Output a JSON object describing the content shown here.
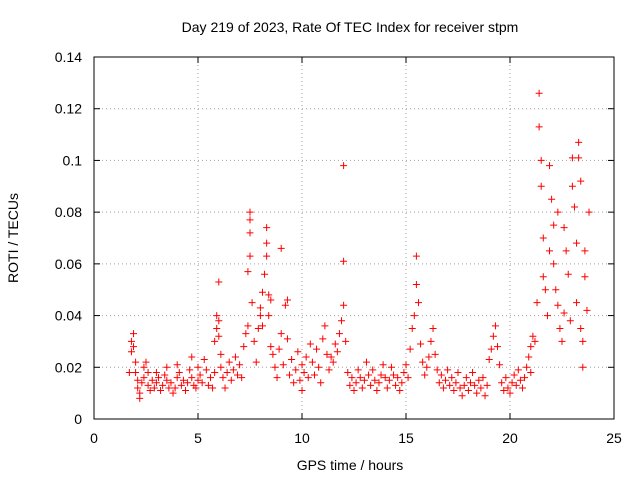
{
  "chart_data": {
    "type": "scatter",
    "title": "Day 219 of 2023, Rate Of TEC Index for receiver stpm",
    "xlabel": "GPS time / hours",
    "ylabel": "ROTI / TECUs",
    "xlim": [
      0,
      25
    ],
    "ylim": [
      0,
      0.14
    ],
    "x_ticks": [
      "0",
      "5",
      "10",
      "15",
      "20",
      "25"
    ],
    "y_ticks": [
      "0",
      "0.02",
      "0.04",
      "0.06",
      "0.08",
      "0.1",
      "0.12",
      "0.14"
    ],
    "grid": true,
    "marker": "+",
    "color": "#ff0000",
    "series": [
      {
        "points": [
          [
            1.7,
            0.018
          ],
          [
            1.8,
            0.026
          ],
          [
            1.8,
            0.03
          ],
          [
            1.9,
            0.033
          ],
          [
            1.9,
            0.028
          ],
          [
            2.0,
            0.022
          ],
          [
            2.0,
            0.018
          ],
          [
            2.1,
            0.012
          ],
          [
            2.1,
            0.015
          ],
          [
            2.2,
            0.01
          ],
          [
            2.2,
            0.008
          ],
          [
            2.3,
            0.014
          ],
          [
            2.4,
            0.016
          ],
          [
            2.4,
            0.02
          ],
          [
            2.5,
            0.022
          ],
          [
            2.6,
            0.018
          ],
          [
            2.6,
            0.013
          ],
          [
            2.7,
            0.011
          ],
          [
            2.8,
            0.015
          ],
          [
            2.9,
            0.012
          ],
          [
            3.0,
            0.014
          ],
          [
            3.0,
            0.018
          ],
          [
            3.1,
            0.016
          ],
          [
            3.2,
            0.011
          ],
          [
            3.3,
            0.013
          ],
          [
            3.4,
            0.017
          ],
          [
            3.5,
            0.02
          ],
          [
            3.5,
            0.015
          ],
          [
            3.6,
            0.012
          ],
          [
            3.7,
            0.014
          ],
          [
            3.8,
            0.01
          ],
          [
            3.9,
            0.012
          ],
          [
            4.0,
            0.016
          ],
          [
            4.0,
            0.021
          ],
          [
            4.1,
            0.018
          ],
          [
            4.2,
            0.013
          ],
          [
            4.3,
            0.015
          ],
          [
            4.4,
            0.011
          ],
          [
            4.5,
            0.014
          ],
          [
            4.6,
            0.019
          ],
          [
            4.7,
            0.024
          ],
          [
            4.7,
            0.016
          ],
          [
            4.8,
            0.013
          ],
          [
            4.9,
            0.012
          ],
          [
            5.0,
            0.015
          ],
          [
            5.0,
            0.02
          ],
          [
            5.1,
            0.017
          ],
          [
            5.2,
            0.014
          ],
          [
            5.3,
            0.023
          ],
          [
            5.4,
            0.019
          ],
          [
            5.5,
            0.013
          ],
          [
            5.6,
            0.016
          ],
          [
            5.7,
            0.012
          ],
          [
            5.8,
            0.018
          ],
          [
            5.8,
            0.03
          ],
          [
            5.9,
            0.035
          ],
          [
            5.9,
            0.04
          ],
          [
            6.0,
            0.038
          ],
          [
            6.0,
            0.032
          ],
          [
            6.0,
            0.053
          ],
          [
            6.1,
            0.025
          ],
          [
            6.1,
            0.02
          ],
          [
            6.2,
            0.016
          ],
          [
            6.3,
            0.012
          ],
          [
            6.4,
            0.018
          ],
          [
            6.5,
            0.022
          ],
          [
            6.6,
            0.015
          ],
          [
            6.7,
            0.019
          ],
          [
            6.8,
            0.024
          ],
          [
            6.9,
            0.017
          ],
          [
            7.0,
            0.021
          ],
          [
            7.1,
            0.016
          ],
          [
            7.2,
            0.028
          ],
          [
            7.3,
            0.033
          ],
          [
            7.4,
            0.036
          ],
          [
            7.4,
            0.057
          ],
          [
            7.5,
            0.063
          ],
          [
            7.5,
            0.072
          ],
          [
            7.5,
            0.08
          ],
          [
            7.5,
            0.077
          ],
          [
            7.6,
            0.045
          ],
          [
            7.7,
            0.03
          ],
          [
            7.8,
            0.022
          ],
          [
            7.9,
            0.035
          ],
          [
            8.0,
            0.04
          ],
          [
            8.0,
            0.043
          ],
          [
            8.1,
            0.049
          ],
          [
            8.1,
            0.036
          ],
          [
            8.2,
            0.056
          ],
          [
            8.3,
            0.063
          ],
          [
            8.3,
            0.068
          ],
          [
            8.3,
            0.074
          ],
          [
            8.4,
            0.048
          ],
          [
            8.4,
            0.04
          ],
          [
            8.5,
            0.028
          ],
          [
            8.5,
            0.046
          ],
          [
            8.6,
            0.025
          ],
          [
            8.7,
            0.02
          ],
          [
            8.8,
            0.016
          ],
          [
            8.9,
            0.027
          ],
          [
            9.0,
            0.066
          ],
          [
            9.0,
            0.033
          ],
          [
            9.1,
            0.021
          ],
          [
            9.2,
            0.044
          ],
          [
            9.3,
            0.046
          ],
          [
            9.3,
            0.031
          ],
          [
            9.4,
            0.017
          ],
          [
            9.5,
            0.023
          ],
          [
            9.6,
            0.014
          ],
          [
            9.7,
            0.019
          ],
          [
            9.8,
            0.026
          ],
          [
            9.9,
            0.015
          ],
          [
            10.0,
            0.011
          ],
          [
            10.0,
            0.021
          ],
          [
            10.1,
            0.018
          ],
          [
            10.2,
            0.024
          ],
          [
            10.3,
            0.016
          ],
          [
            10.4,
            0.029
          ],
          [
            10.5,
            0.022
          ],
          [
            10.6,
            0.017
          ],
          [
            10.7,
            0.027
          ],
          [
            10.8,
            0.02
          ],
          [
            10.9,
            0.014
          ],
          [
            11.0,
            0.031
          ],
          [
            11.1,
            0.036
          ],
          [
            11.2,
            0.025
          ],
          [
            11.3,
            0.019
          ],
          [
            11.4,
            0.024
          ],
          [
            11.5,
            0.022
          ],
          [
            11.6,
            0.029
          ],
          [
            11.7,
            0.026
          ],
          [
            11.8,
            0.033
          ],
          [
            11.9,
            0.038
          ],
          [
            12.0,
            0.044
          ],
          [
            12.0,
            0.061
          ],
          [
            12.0,
            0.098
          ],
          [
            12.1,
            0.03
          ],
          [
            12.2,
            0.018
          ],
          [
            12.3,
            0.013
          ],
          [
            12.4,
            0.016
          ],
          [
            12.5,
            0.011
          ],
          [
            12.6,
            0.014
          ],
          [
            12.7,
            0.019
          ],
          [
            12.8,
            0.016
          ],
          [
            12.9,
            0.012
          ],
          [
            13.0,
            0.015
          ],
          [
            13.1,
            0.022
          ],
          [
            13.2,
            0.017
          ],
          [
            13.3,
            0.013
          ],
          [
            13.4,
            0.019
          ],
          [
            13.5,
            0.015
          ],
          [
            13.6,
            0.011
          ],
          [
            13.7,
            0.014
          ],
          [
            13.8,
            0.017
          ],
          [
            13.9,
            0.021
          ],
          [
            14.0,
            0.016
          ],
          [
            14.1,
            0.012
          ],
          [
            14.2,
            0.015
          ],
          [
            14.3,
            0.02
          ],
          [
            14.4,
            0.017
          ],
          [
            14.5,
            0.013
          ],
          [
            14.6,
            0.016
          ],
          [
            14.7,
            0.011
          ],
          [
            14.8,
            0.014
          ],
          [
            14.9,
            0.018
          ],
          [
            15.0,
            0.021
          ],
          [
            15.1,
            0.016
          ],
          [
            15.2,
            0.027
          ],
          [
            15.3,
            0.035
          ],
          [
            15.4,
            0.04
          ],
          [
            15.5,
            0.052
          ],
          [
            15.5,
            0.063
          ],
          [
            15.6,
            0.045
          ],
          [
            15.7,
            0.029
          ],
          [
            15.8,
            0.022
          ],
          [
            15.9,
            0.017
          ],
          [
            16.0,
            0.02
          ],
          [
            16.1,
            0.024
          ],
          [
            16.2,
            0.03
          ],
          [
            16.3,
            0.035
          ],
          [
            16.4,
            0.025
          ],
          [
            16.5,
            0.019
          ],
          [
            16.6,
            0.014
          ],
          [
            16.7,
            0.017
          ],
          [
            16.8,
            0.012
          ],
          [
            16.9,
            0.015
          ],
          [
            17.0,
            0.019
          ],
          [
            17.1,
            0.013
          ],
          [
            17.2,
            0.016
          ],
          [
            17.3,
            0.011
          ],
          [
            17.4,
            0.014
          ],
          [
            17.5,
            0.018
          ],
          [
            17.6,
            0.012
          ],
          [
            17.7,
            0.009
          ],
          [
            17.8,
            0.013
          ],
          [
            17.9,
            0.016
          ],
          [
            18.0,
            0.011
          ],
          [
            18.1,
            0.014
          ],
          [
            18.2,
            0.018
          ],
          [
            18.3,
            0.013
          ],
          [
            18.4,
            0.01
          ],
          [
            18.5,
            0.015
          ],
          [
            18.6,
            0.012
          ],
          [
            18.7,
            0.016
          ],
          [
            18.8,
            0.009
          ],
          [
            18.9,
            0.013
          ],
          [
            19.0,
            0.023
          ],
          [
            19.1,
            0.027
          ],
          [
            19.2,
            0.032
          ],
          [
            19.3,
            0.036
          ],
          [
            19.4,
            0.028
          ],
          [
            19.5,
            0.021
          ],
          [
            19.6,
            0.014
          ],
          [
            19.7,
            0.011
          ],
          [
            19.8,
            0.016
          ],
          [
            19.9,
            0.012
          ],
          [
            20.0,
            0.01
          ],
          [
            20.1,
            0.014
          ],
          [
            20.2,
            0.017
          ],
          [
            20.3,
            0.013
          ],
          [
            20.4,
            0.019
          ],
          [
            20.5,
            0.015
          ],
          [
            20.6,
            0.012
          ],
          [
            20.7,
            0.016
          ],
          [
            20.8,
            0.02
          ],
          [
            20.9,
            0.024
          ],
          [
            21.0,
            0.018
          ],
          [
            21.0,
            0.028
          ],
          [
            21.1,
            0.032
          ],
          [
            21.2,
            0.03
          ],
          [
            21.3,
            0.045
          ],
          [
            21.4,
            0.126
          ],
          [
            21.4,
            0.113
          ],
          [
            21.5,
            0.1
          ],
          [
            21.5,
            0.09
          ],
          [
            21.6,
            0.07
          ],
          [
            21.6,
            0.055
          ],
          [
            21.7,
            0.05
          ],
          [
            21.8,
            0.04
          ],
          [
            21.9,
            0.065
          ],
          [
            21.9,
            0.098
          ],
          [
            22.0,
            0.085
          ],
          [
            22.1,
            0.06
          ],
          [
            22.1,
            0.075
          ],
          [
            22.2,
            0.05
          ],
          [
            22.3,
            0.044
          ],
          [
            22.3,
            0.08
          ],
          [
            22.4,
            0.035
          ],
          [
            22.5,
            0.03
          ],
          [
            22.6,
            0.041
          ],
          [
            22.6,
            0.074
          ],
          [
            22.7,
            0.065
          ],
          [
            22.8,
            0.056
          ],
          [
            22.9,
            0.038
          ],
          [
            23.0,
            0.101
          ],
          [
            23.0,
            0.09
          ],
          [
            23.1,
            0.082
          ],
          [
            23.2,
            0.068
          ],
          [
            23.2,
            0.045
          ],
          [
            23.3,
            0.107
          ],
          [
            23.3,
            0.101
          ],
          [
            23.4,
            0.092
          ],
          [
            23.4,
            0.035
          ],
          [
            23.5,
            0.03
          ],
          [
            23.5,
            0.02
          ],
          [
            23.6,
            0.065
          ],
          [
            23.6,
            0.055
          ],
          [
            23.7,
            0.042
          ],
          [
            23.8,
            0.08
          ]
        ]
      }
    ]
  }
}
